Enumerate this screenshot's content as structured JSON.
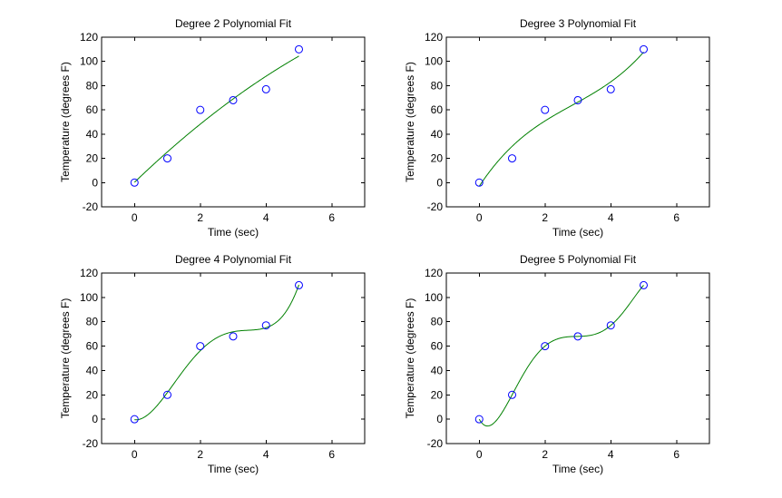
{
  "chart_data": [
    {
      "type": "scatter",
      "title": "Degree 2 Polynomial Fit",
      "xlabel": "Time (sec)",
      "ylabel": "Temperature (degrees F)",
      "xlim": [
        -1,
        7
      ],
      "ylim": [
        -20,
        120
      ],
      "xticks": [
        0,
        2,
        4,
        6
      ],
      "yticks": [
        -20,
        0,
        20,
        40,
        60,
        80,
        100,
        120
      ],
      "grid": false,
      "points": {
        "x": [
          0,
          1,
          2,
          3,
          4,
          5
        ],
        "y": [
          0,
          20,
          60,
          68,
          77,
          110
        ],
        "color": "#0000ff",
        "marker": "circle"
      },
      "fit": {
        "degree": 2,
        "color": "#008000",
        "x_range": [
          0,
          5
        ]
      }
    },
    {
      "type": "scatter",
      "title": "Degree 3 Polynomial Fit",
      "xlabel": "Time (sec)",
      "ylabel": "Temperature (degrees F)",
      "xlim": [
        -1,
        7
      ],
      "ylim": [
        -20,
        120
      ],
      "xticks": [
        0,
        2,
        4,
        6
      ],
      "yticks": [
        -20,
        0,
        20,
        40,
        60,
        80,
        100,
        120
      ],
      "grid": false,
      "points": {
        "x": [
          0,
          1,
          2,
          3,
          4,
          5
        ],
        "y": [
          0,
          20,
          60,
          68,
          77,
          110
        ],
        "color": "#0000ff",
        "marker": "circle"
      },
      "fit": {
        "degree": 3,
        "color": "#008000",
        "x_range": [
          0,
          5
        ]
      }
    },
    {
      "type": "scatter",
      "title": "Degree 4 Polynomial Fit",
      "xlabel": "Time (sec)",
      "ylabel": "Temperature (degrees F)",
      "xlim": [
        -1,
        7
      ],
      "ylim": [
        -20,
        120
      ],
      "xticks": [
        0,
        2,
        4,
        6
      ],
      "yticks": [
        -20,
        0,
        20,
        40,
        60,
        80,
        100,
        120
      ],
      "grid": false,
      "points": {
        "x": [
          0,
          1,
          2,
          3,
          4,
          5
        ],
        "y": [
          0,
          20,
          60,
          68,
          77,
          110
        ],
        "color": "#0000ff",
        "marker": "circle"
      },
      "fit": {
        "degree": 4,
        "color": "#008000",
        "x_range": [
          0,
          5
        ]
      }
    },
    {
      "type": "scatter",
      "title": "Degree 5 Polynomial Fit",
      "xlabel": "Time (sec)",
      "ylabel": "Temperature (degrees F)",
      "xlim": [
        -1,
        7
      ],
      "ylim": [
        -20,
        120
      ],
      "xticks": [
        0,
        2,
        4,
        6
      ],
      "yticks": [
        -20,
        0,
        20,
        40,
        60,
        80,
        100,
        120
      ],
      "grid": false,
      "points": {
        "x": [
          0,
          1,
          2,
          3,
          4,
          5
        ],
        "y": [
          0,
          20,
          60,
          68,
          77,
          110
        ],
        "color": "#0000ff",
        "marker": "circle"
      },
      "fit": {
        "degree": 5,
        "color": "#008000",
        "x_range": [
          0,
          5
        ]
      }
    }
  ]
}
